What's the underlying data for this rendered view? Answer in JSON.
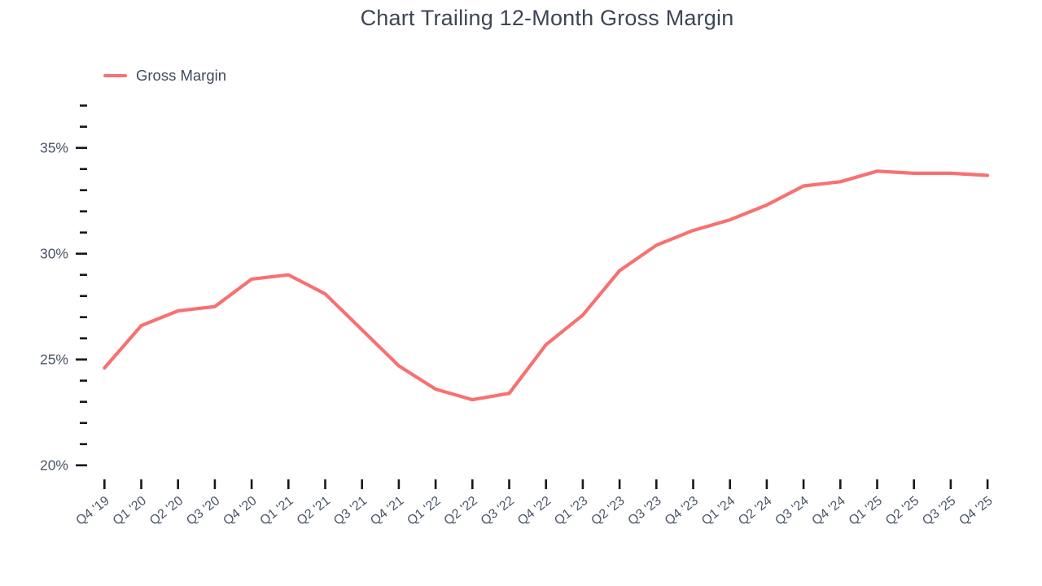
{
  "title": "Chart Trailing 12-Month Gross Margin",
  "legend": {
    "label": "Gross Margin",
    "color": "#f87171"
  },
  "colors": {
    "line": "#f87171",
    "tick": "#15181e",
    "axis_text": "#4a5568",
    "title_text": "#3d4655"
  },
  "chart_data": {
    "type": "line",
    "title": "Chart Trailing 12-Month Gross Margin",
    "categories": [
      "Q4 '19",
      "Q1 '20",
      "Q2 '20",
      "Q3 '20",
      "Q4 '20",
      "Q1 '21",
      "Q2 '21",
      "Q3 '21",
      "Q4 '21",
      "Q1 '22",
      "Q2 '22",
      "Q3 '22",
      "Q4 '22",
      "Q1 '23",
      "Q2 '23",
      "Q3 '23",
      "Q4 '23",
      "Q1 '24",
      "Q2 '24",
      "Q3 '24",
      "Q4 '24",
      "Q1 '25",
      "Q2 '25",
      "Q3 '25",
      "Q4 '25"
    ],
    "series": [
      {
        "name": "Gross Margin",
        "values": [
          24.6,
          26.6,
          27.3,
          27.5,
          28.8,
          29.0,
          28.1,
          26.4,
          24.7,
          23.6,
          23.1,
          23.4,
          25.7,
          27.1,
          29.2,
          30.4,
          31.1,
          31.6,
          32.3,
          33.2,
          33.4,
          33.9,
          33.8,
          33.8,
          33.7
        ]
      }
    ],
    "xlabel": "",
    "ylabel": "",
    "y_major_ticks": [
      20,
      25,
      30,
      35
    ],
    "y_minor_tick_step": 1,
    "y_axis_range": [
      20,
      37
    ],
    "y_tick_format": "percent",
    "y_tick_labels": [
      "20%",
      "25%",
      "30%",
      "35%"
    ],
    "grid": false,
    "legend_position": "top-left",
    "x_label_rotation_deg": -38
  }
}
